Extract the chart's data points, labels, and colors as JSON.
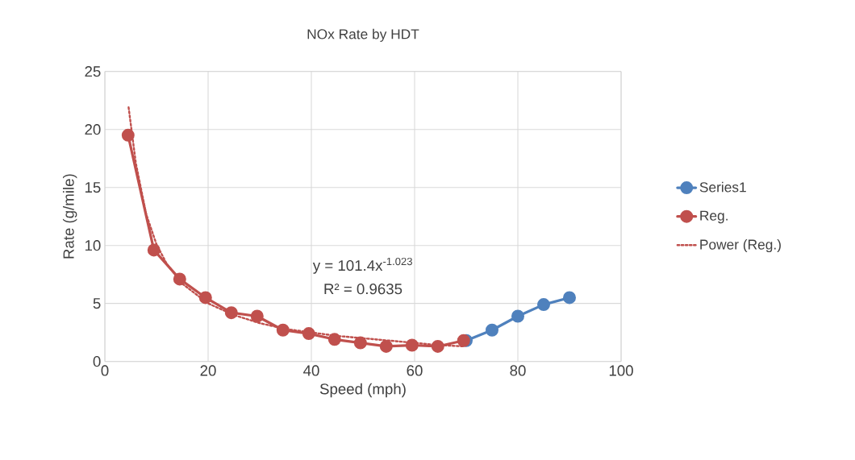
{
  "chart_data": {
    "type": "line",
    "title": "NOx Rate by HDT",
    "xlabel": "Speed (mph)",
    "ylabel": "Rate (g/mile)",
    "xlim": [
      0,
      100
    ],
    "xticks": [
      0,
      20,
      40,
      60,
      80,
      100
    ],
    "ylim": [
      0,
      25
    ],
    "yticks": [
      0,
      5,
      10,
      15,
      20,
      25
    ],
    "grid": true,
    "legend": "right",
    "marker": "circle",
    "line_style": "solid",
    "series": [
      {
        "name": "Series1",
        "color": "#4f81bd",
        "x": [
          70,
          75,
          80,
          85,
          90
        ],
        "values": [
          1.8,
          2.7,
          3.9,
          4.9,
          5.5
        ]
      },
      {
        "name": "Reg.",
        "color": "#c0504d",
        "x": [
          4.5,
          9.5,
          14.5,
          19.5,
          24.5,
          29.5,
          34.5,
          39.5,
          44.5,
          49.5,
          54.5,
          59.5,
          64.5,
          69.5
        ],
        "values": [
          19.5,
          9.6,
          7.1,
          5.5,
          4.2,
          3.9,
          2.7,
          2.4,
          1.9,
          1.6,
          1.3,
          1.4,
          1.3,
          1.8
        ]
      },
      {
        "name": "Power (Reg.)",
        "color": "#c0504d",
        "marker": "none",
        "line_style": "dotted",
        "x": [
          4.6,
          6,
          8,
          10,
          12,
          15,
          20,
          25,
          30,
          35,
          40,
          45,
          50,
          55,
          60,
          65,
          69.5
        ],
        "values": [
          21.9,
          17.1,
          12.7,
          10.1,
          8.4,
          6.7,
          5.0,
          4.0,
          3.3,
          2.8,
          2.5,
          2.2,
          2.0,
          1.8,
          1.6,
          1.4,
          1.3
        ]
      }
    ],
    "annotations": [
      "y = 101.4x$^{-1.023}$",
      "R² = 0.9635"
    ]
  }
}
